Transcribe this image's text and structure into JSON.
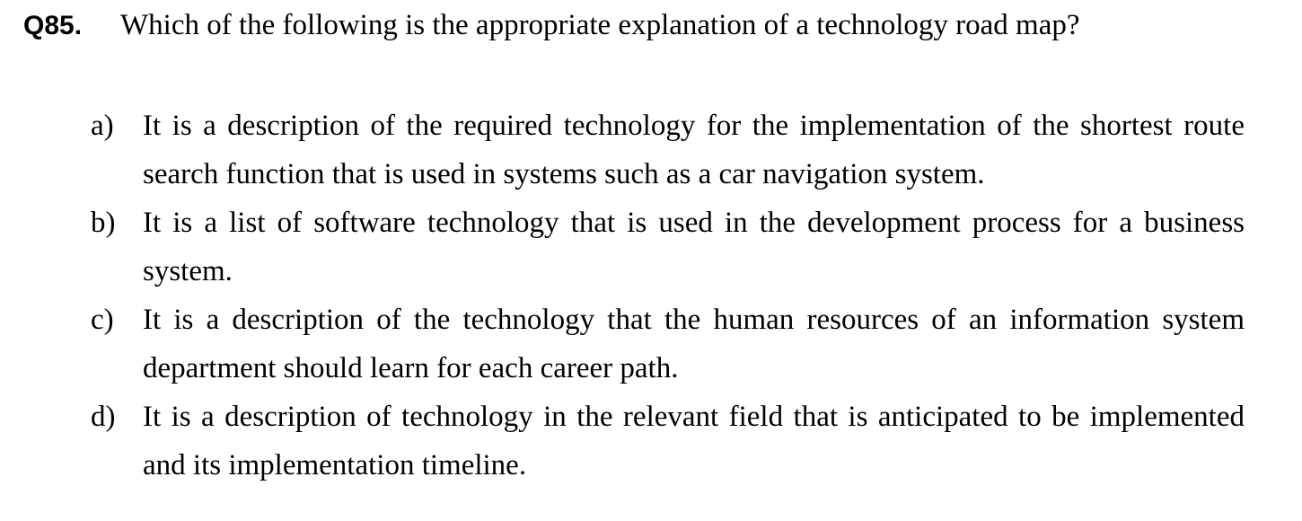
{
  "question": {
    "number": "Q85.",
    "text": "Which of the following is the appropriate explanation of a technology road map?"
  },
  "options": [
    {
      "letter": "a)",
      "text": "It is a description of the required technology for the implementation of the shortest route search function that is used in systems such as a car navigation system."
    },
    {
      "letter": "b)",
      "text": "It is a list of software technology that is used in the development process for a business system."
    },
    {
      "letter": "c)",
      "text": "It is a description of the technology that the human resources of an information system department should learn for each career path."
    },
    {
      "letter": "d)",
      "text": "It is a description of technology in the relevant field that is anticipated to be implemented and its implementation timeline."
    }
  ]
}
